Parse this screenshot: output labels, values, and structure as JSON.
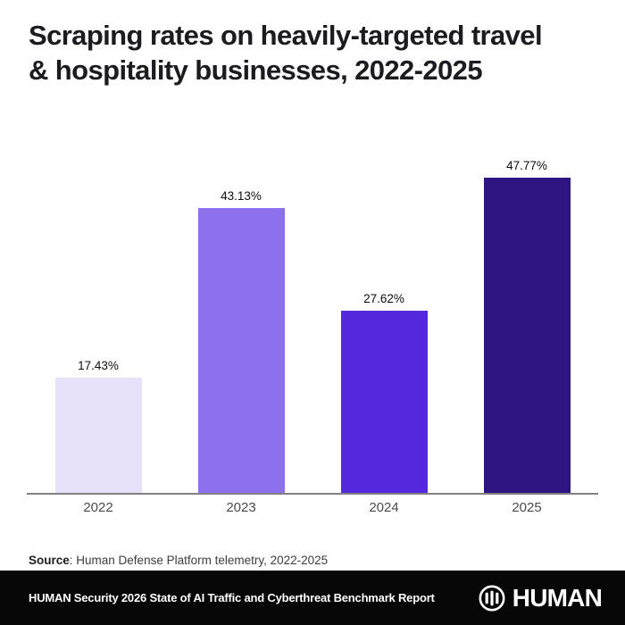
{
  "title": "Scraping rates on heavily-targeted travel & hospitality businesses, 2022-2025",
  "chart_data": {
    "type": "bar",
    "title": "Scraping rates on heavily-targeted travel & hospitality businesses, 2022-2025",
    "categories": [
      "2022",
      "2023",
      "2024",
      "2025"
    ],
    "values": [
      17.43,
      43.13,
      27.62,
      47.77
    ],
    "value_labels": [
      "17.43%",
      "43.13%",
      "27.62%",
      "47.77%"
    ],
    "bar_colors": [
      "#e7e2f9",
      "#8d71ec",
      "#5628dd",
      "#2e1581"
    ],
    "xlabel": "",
    "ylabel": "",
    "ylim": [
      0,
      53
    ],
    "grid": false,
    "legend": false,
    "axis_line_color": "#828282"
  },
  "source": {
    "label": "Source",
    "text": ": Human Defense Platform telemetry, 2022-2025"
  },
  "footer": {
    "report": "HUMAN Security 2026 State of AI Traffic and Cyberthreat Benchmark Report",
    "brand": "HUMAN",
    "logo_icon": "human-circle-bars-icon",
    "background": "#060606",
    "text_color": "#ffffff"
  }
}
